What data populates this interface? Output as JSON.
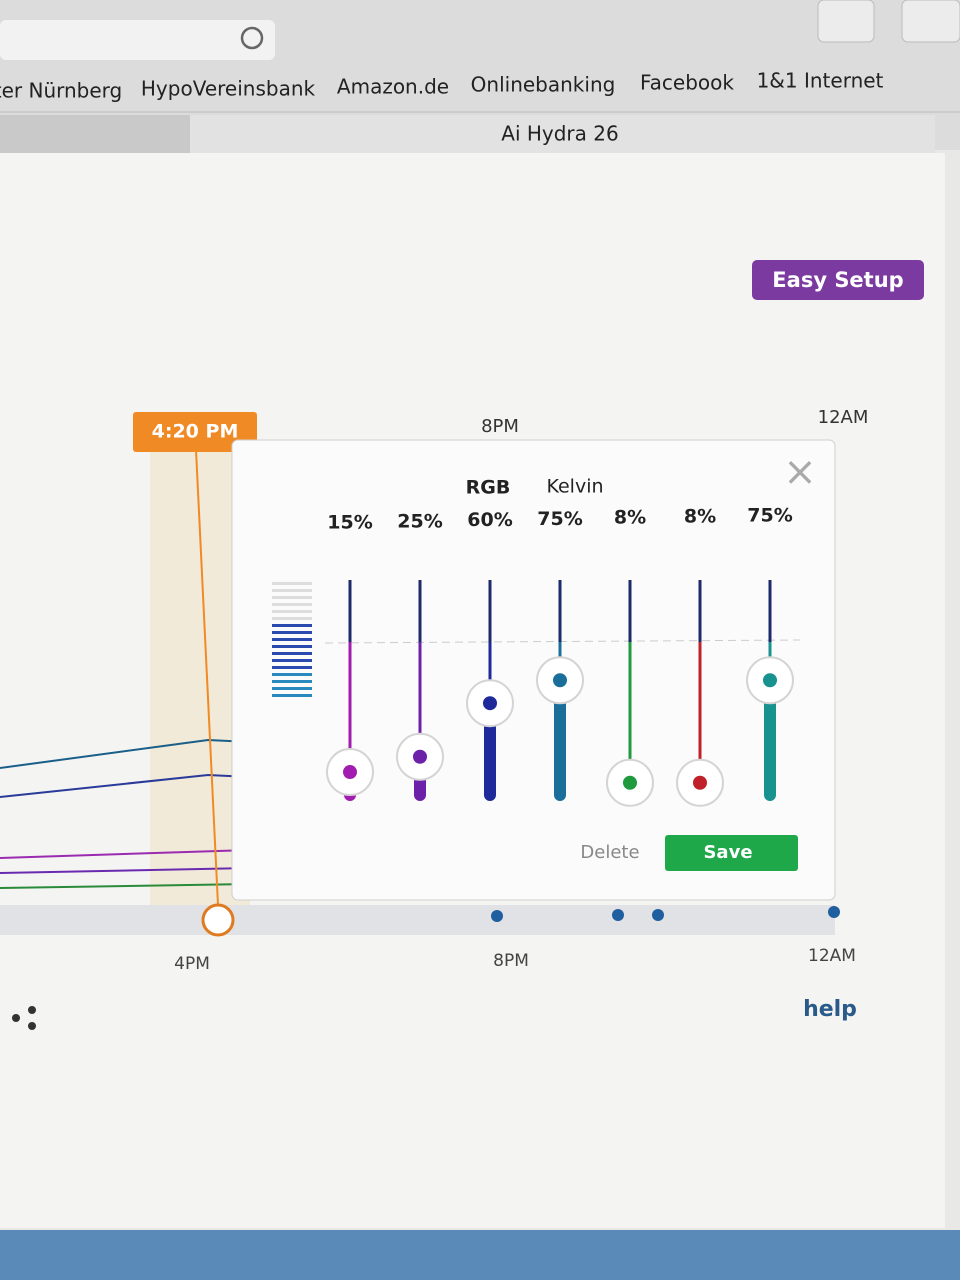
{
  "browser": {
    "bookmarks": [
      "ter Nürnberg",
      "HypoVereinsbank",
      "Amazon.de",
      "Onlinebanking",
      "Facebook",
      "1&1 Internet"
    ],
    "tab_title": "Ai Hydra 26"
  },
  "page": {
    "easy_setup": "Easy Setup",
    "time_marker": "4:20 PM",
    "top_axis": [
      "8PM",
      "12AM"
    ],
    "bottom_axis": [
      "4PM",
      "8PM",
      "12AM"
    ],
    "help": "help"
  },
  "panel": {
    "headings": [
      "RGB",
      "Kelvin"
    ],
    "channels": [
      {
        "value": 15,
        "label": "15%",
        "color": "#a21caf"
      },
      {
        "value": 25,
        "label": "25%",
        "color": "#6b21a8"
      },
      {
        "value": 60,
        "label": "60%",
        "color": "#1e2a9a"
      },
      {
        "value": 75,
        "label": "75%",
        "color": "#1a6f9a"
      },
      {
        "value": 8,
        "label": "8%",
        "color": "#1f9a3f"
      },
      {
        "value": 8,
        "label": "8%",
        "color": "#c0202a"
      },
      {
        "value": 75,
        "label": "75%",
        "color": "#17928f"
      }
    ],
    "delete": "Delete",
    "save": "Save"
  }
}
